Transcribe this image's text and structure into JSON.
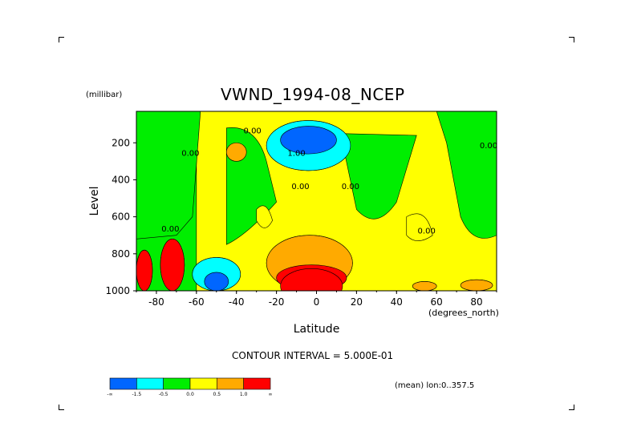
{
  "header": {
    "units_label": "(millibar)",
    "title": "VWND_1994-08_NCEP"
  },
  "footer": {
    "contour_interval": "CONTOUR INTERVAL = 5.000E-01",
    "mean_note": "(mean) lon:0..357.5"
  },
  "colorbar": {
    "colors": [
      "#0066ff",
      "#00ffff",
      "#00ee00",
      "#ffff00",
      "#ffaa00",
      "#ff0000"
    ],
    "tick_labels": [
      "-∞",
      "-1.5",
      "-0.5",
      "0.0",
      "0.5",
      "1.0",
      "∞"
    ]
  },
  "chart_data": {
    "type": "heatmap",
    "title": "VWND_1994-08_NCEP",
    "xlabel": "Latitude",
    "xlabel_units": "(degrees_north)",
    "ylabel": "Level",
    "ylabel_units": "(millibar)",
    "xlim": [
      -90,
      90
    ],
    "ylim": [
      1000,
      30
    ],
    "x_ticks": [
      -80,
      -60,
      -40,
      -20,
      0,
      20,
      40,
      60,
      80
    ],
    "y_ticks": [
      200,
      400,
      600,
      800,
      1000
    ],
    "contour_labels": [
      {
        "text": "1.00",
        "lat": -10,
        "level": 270
      },
      {
        "text": "0.00",
        "lat": -63,
        "level": 270
      },
      {
        "text": "0.00",
        "lat": -32,
        "level": 150
      },
      {
        "text": "0.00",
        "lat": -8,
        "level": 450
      },
      {
        "text": "0.00",
        "lat": 17,
        "level": 450
      },
      {
        "text": "0.00",
        "lat": 55,
        "level": 690
      },
      {
        "text": "0.00",
        "lat": -73,
        "level": 680
      },
      {
        "text": "0.00",
        "lat": 86,
        "level": 230
      }
    ],
    "regions": [
      {
        "level_class": "green",
        "lat_range": [
          -90,
          -60
        ],
        "level_range": [
          30,
          1000
        ],
        "value": -0.25
      },
      {
        "level_class": "green",
        "lat_range": [
          -45,
          -20
        ],
        "level_range": [
          120,
          750
        ],
        "value": -0.25
      },
      {
        "level_class": "green",
        "lat_range": [
          10,
          50
        ],
        "level_range": [
          130,
          700
        ],
        "value": -0.25
      },
      {
        "level_class": "green",
        "lat_range": [
          65,
          90
        ],
        "level_range": [
          30,
          750
        ],
        "value": -0.25
      },
      {
        "level_class": "yellow",
        "lat_range": [
          -60,
          90
        ],
        "level_range": [
          30,
          1000
        ],
        "value": 0.25
      },
      {
        "level_class": "orange",
        "lat_range": [
          -45,
          -35
        ],
        "level_range": [
          200,
          300
        ],
        "value": 0.75
      },
      {
        "level_class": "blue",
        "lat_range": [
          -20,
          12
        ],
        "level_range": [
          90,
          290
        ],
        "value": -1.75
      },
      {
        "level_class": "cyan",
        "lat_range": [
          -25,
          17
        ],
        "level_range": [
          80,
          350
        ],
        "value": -1.0
      },
      {
        "level_class": "orange",
        "lat_range": [
          -25,
          18
        ],
        "level_range": [
          700,
          1000
        ],
        "value": 0.75
      },
      {
        "level_class": "red",
        "lat_range": [
          -20,
          15
        ],
        "level_range": [
          860,
          1000
        ],
        "value": 1.5
      },
      {
        "level_class": "red",
        "lat_range": [
          -90,
          -82
        ],
        "level_range": [
          780,
          1000
        ],
        "value": 1.5
      },
      {
        "level_class": "red",
        "lat_range": [
          -78,
          -66
        ],
        "level_range": [
          720,
          1000
        ],
        "value": 1.5
      },
      {
        "level_class": "blue",
        "lat_range": [
          -58,
          -42
        ],
        "level_range": [
          880,
          1000
        ],
        "value": -1.75
      },
      {
        "level_class": "cyan",
        "lat_range": [
          -62,
          -38
        ],
        "level_range": [
          820,
          1000
        ],
        "value": -1.0
      },
      {
        "level_class": "orange",
        "lat_range": [
          48,
          60
        ],
        "level_range": [
          950,
          1000
        ],
        "value": 0.75
      },
      {
        "level_class": "orange",
        "lat_range": [
          72,
          88
        ],
        "level_range": [
          940,
          1000
        ],
        "value": 0.75
      }
    ]
  }
}
